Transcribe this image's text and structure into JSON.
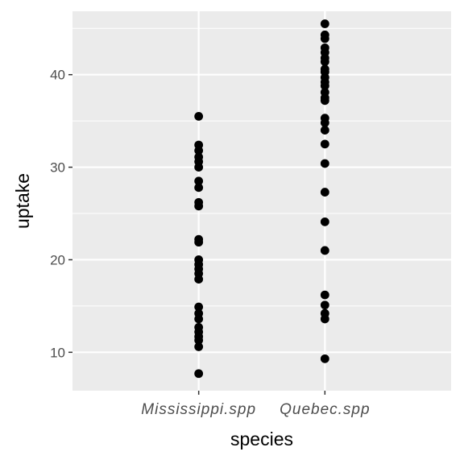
{
  "chart_data": {
    "type": "scatter",
    "title": "",
    "xlabel": "species",
    "ylabel": "uptake",
    "categories": [
      "Mississippi.spp",
      "Quebec.spp"
    ],
    "ylim": [
      5.85,
      46.85
    ],
    "yticks": [
      10,
      20,
      30,
      40
    ],
    "grid": true,
    "panel_background": "#ebebeb",
    "point_color": "#000000",
    "series": [
      {
        "category": "Mississippi.spp",
        "values": [
          35.5,
          32.4,
          31.8,
          31.1,
          30.6,
          30.0,
          28.5,
          27.8,
          26.2,
          25.8,
          22.2,
          21.9,
          20.0,
          19.5,
          19.0,
          18.5,
          17.9,
          14.9,
          14.2,
          13.6,
          12.7,
          12.2,
          11.7,
          11.3,
          10.6,
          7.7
        ]
      },
      {
        "category": "Quebec.spp",
        "values": [
          45.5,
          44.3,
          43.9,
          42.9,
          42.4,
          41.8,
          41.4,
          40.6,
          40.3,
          39.7,
          39.2,
          38.8,
          38.1,
          37.5,
          37.2,
          35.3,
          34.8,
          34.0,
          32.5,
          30.4,
          27.3,
          24.1,
          21.0,
          16.2,
          15.1,
          14.2,
          13.6,
          9.3
        ]
      }
    ]
  }
}
